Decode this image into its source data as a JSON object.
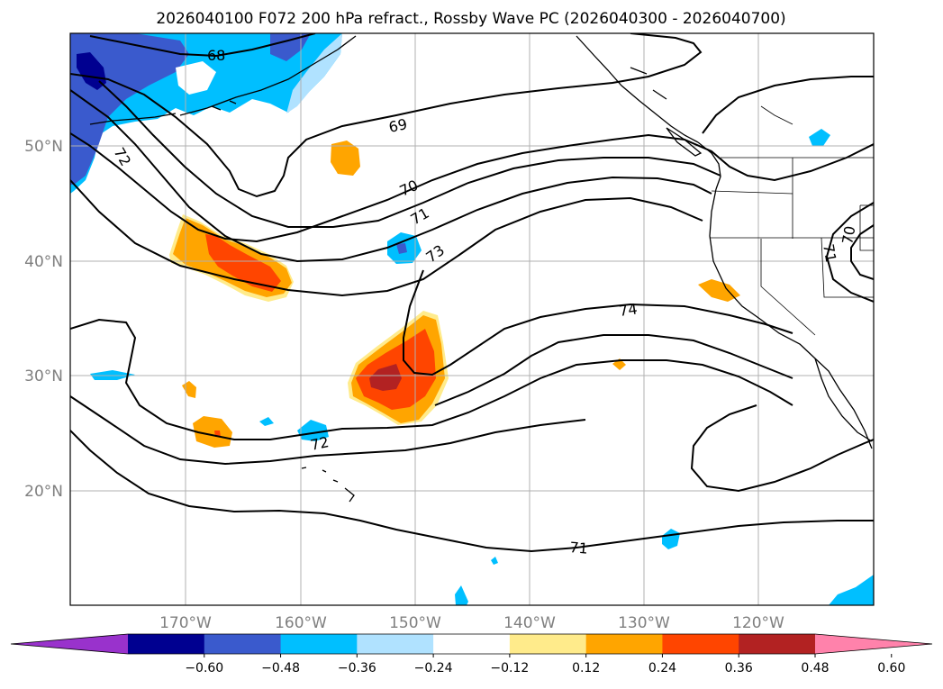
{
  "title": "2026040100 F072 200 hPa refract., Rossby Wave PC (2026040300 - 2026040700)",
  "lat_labels": [
    "50°N",
    "40°N",
    "30°N",
    "20°N"
  ],
  "lon_labels": [
    "170°W",
    "160°W",
    "150°W",
    "140°W",
    "130°W",
    "120°W"
  ],
  "colorbar": {
    "tick_labels": [
      "−0.60",
      "−0.48",
      "−0.36",
      "−0.24",
      "−0.12",
      "0.12",
      "0.24",
      "0.36",
      "0.48",
      "0.60"
    ],
    "colors": [
      "#9932cc",
      "#000090",
      "#3a5acd",
      "#00bfff",
      "#b0e2ff",
      "#ffffff",
      "#ffeb8b",
      "#ffa500",
      "#ff4500",
      "#b22222",
      "#ff82ab"
    ]
  },
  "contour_labels": [
    "68",
    "69",
    "70",
    "71",
    "72",
    "73",
    "74",
    "72",
    "71",
    "71",
    "70"
  ],
  "colors": {
    "coast": "#000000",
    "grid": "#b0b0b0"
  }
}
